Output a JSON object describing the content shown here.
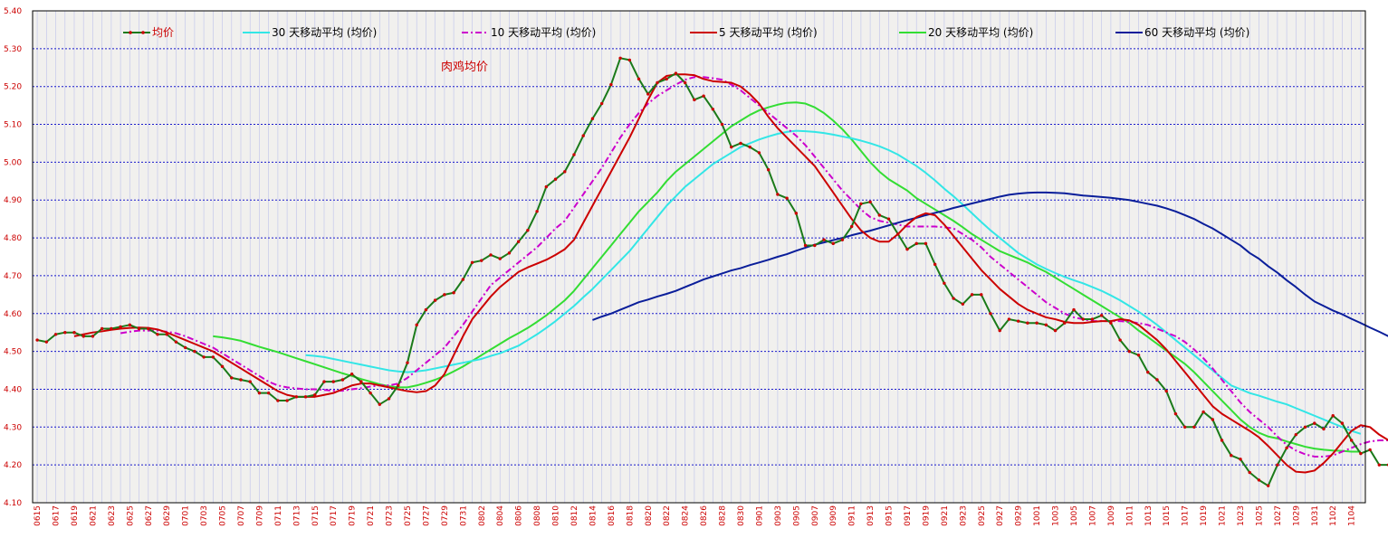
{
  "chart_data": {
    "type": "line",
    "annotation": "肉鸡均价",
    "ylim": [
      4.1,
      5.4
    ],
    "y_ticks": [
      "5.40",
      "5.30",
      "5.20",
      "5.10",
      "5.00",
      "4.90",
      "4.80",
      "4.70",
      "4.60",
      "4.50",
      "4.40",
      "4.30",
      "4.20",
      "4.10"
    ],
    "grid": true,
    "legend_position": "top",
    "x_tick_labels": [
      "0615",
      "0617",
      "0619",
      "0621",
      "0623",
      "0625",
      "0627",
      "0629",
      "0701",
      "0703",
      "0705",
      "0707",
      "0709",
      "0711",
      "0713",
      "0715",
      "0717",
      "0719",
      "0721",
      "0723",
      "0725",
      "0727",
      "0729",
      "0731",
      "0802",
      "0804",
      "0806",
      "0808",
      "0810",
      "0812",
      "0814",
      "0816",
      "0818",
      "0820",
      "0822",
      "0824",
      "0826",
      "0828",
      "0830",
      "0901",
      "0903",
      "0905",
      "0907",
      "0909",
      "0911",
      "0913",
      "0915",
      "0917",
      "0919",
      "0921",
      "0923",
      "0925",
      "0927",
      "0929",
      "1001",
      "1003",
      "1005",
      "1007",
      "1009",
      "1011",
      "1013",
      "1015",
      "1017",
      "1019",
      "1021",
      "1023",
      "1025",
      "1027",
      "1029",
      "1031",
      "1102",
      "1104"
    ],
    "series": [
      {
        "name": "均价",
        "color": "#1a7a1a",
        "style": "solid-markers",
        "x_from": "0615",
        "values": [
          4.53,
          4.525,
          4.545,
          4.55,
          4.55,
          4.54,
          4.54,
          4.56,
          4.56,
          4.565,
          4.57,
          4.56,
          4.56,
          4.545,
          4.545,
          4.525,
          4.51,
          4.5,
          4.485,
          4.485,
          4.46,
          4.43,
          4.425,
          4.42,
          4.39,
          4.39,
          4.37,
          4.37,
          4.38,
          4.38,
          4.385,
          4.42,
          4.42,
          4.425,
          4.44,
          4.42,
          4.39,
          4.36,
          4.375,
          4.41,
          4.47,
          4.57,
          4.61,
          4.635,
          4.65,
          4.655,
          4.69,
          4.735,
          4.74,
          4.755,
          4.745,
          4.76,
          4.79,
          4.82,
          4.87,
          4.935,
          4.955,
          4.975,
          5.02,
          5.07,
          5.115,
          5.155,
          5.205,
          5.275,
          5.27,
          5.22,
          5.18,
          5.21,
          5.22,
          5.235,
          5.21,
          5.165,
          5.175,
          5.14,
          5.1,
          5.04,
          5.05,
          5.04,
          5.025,
          4.98,
          4.915,
          4.905,
          4.865,
          4.78,
          4.78,
          4.795,
          4.785,
          4.795,
          4.83,
          4.89,
          4.895,
          4.86,
          4.85,
          4.81,
          4.77,
          4.785,
          4.785,
          4.73,
          4.68,
          4.64,
          4.625,
          4.65,
          4.65,
          4.6,
          4.555,
          4.585,
          4.58,
          4.575,
          4.575,
          4.57,
          4.555,
          4.575,
          4.61,
          4.585,
          4.585,
          4.595,
          4.575,
          4.53,
          4.5,
          4.49,
          4.445,
          4.425,
          4.395,
          4.335,
          4.3,
          4.3,
          4.34,
          4.32,
          4.265,
          4.225,
          4.215,
          4.18,
          4.16,
          4.145,
          4.2,
          4.245,
          4.28,
          4.3,
          4.31,
          4.295,
          4.33,
          4.31,
          4.265,
          4.23,
          4.24,
          4.2,
          4.2,
          4.195
        ]
      },
      {
        "name": "30  天移动平均  (均价)",
        "color": "#33e6e6",
        "style": "solid",
        "x_from": "0714",
        "values": [
          4.49,
          4.488,
          4.485,
          4.48,
          4.475,
          4.47,
          4.465,
          4.46,
          4.455,
          4.45,
          4.447,
          4.445,
          4.447,
          4.45,
          4.455,
          4.46,
          4.465,
          4.47,
          4.475,
          4.48,
          4.488,
          4.495,
          4.505,
          4.515,
          4.53,
          4.545,
          4.562,
          4.58,
          4.6,
          4.62,
          4.643,
          4.665,
          4.69,
          4.715,
          4.74,
          4.765,
          4.795,
          4.825,
          4.855,
          4.885,
          4.91,
          4.935,
          4.955,
          4.975,
          4.995,
          5.01,
          5.025,
          5.04,
          5.05,
          5.06,
          5.068,
          5.075,
          5.08,
          5.083,
          5.082,
          5.08,
          5.077,
          5.073,
          5.068,
          5.063,
          5.057,
          5.05,
          5.042,
          5.032,
          5.02,
          5.005,
          4.99,
          4.972,
          4.952,
          4.93,
          4.91,
          4.888,
          4.865,
          4.842,
          4.82,
          4.8,
          4.78,
          4.76,
          4.745,
          4.73,
          4.718,
          4.707,
          4.697,
          4.688,
          4.68,
          4.67,
          4.66,
          4.648,
          4.635,
          4.62,
          4.605,
          4.588,
          4.57,
          4.55,
          4.53,
          4.51,
          4.49,
          4.47,
          4.45,
          4.43,
          4.41,
          4.4,
          4.39,
          4.383,
          4.375,
          4.367,
          4.36,
          4.35,
          4.34,
          4.33,
          4.32,
          4.31,
          4.3,
          4.29,
          4.282
        ]
      },
      {
        "name": "10  天移动平均  (均价)",
        "color": "#cc00cc",
        "style": "dash-dot",
        "x_from": "0624",
        "values": [
          4.548,
          4.552,
          4.555,
          4.555,
          4.555,
          4.552,
          4.548,
          4.54,
          4.53,
          4.52,
          4.51,
          4.495,
          4.48,
          4.465,
          4.45,
          4.435,
          4.42,
          4.41,
          4.405,
          4.402,
          4.4,
          4.4,
          4.398,
          4.396,
          4.396,
          4.4,
          4.403,
          4.407,
          4.41,
          4.41,
          4.415,
          4.43,
          4.45,
          4.47,
          4.49,
          4.51,
          4.54,
          4.57,
          4.605,
          4.64,
          4.675,
          4.695,
          4.715,
          4.735,
          4.755,
          4.775,
          4.8,
          4.825,
          4.845,
          4.88,
          4.915,
          4.95,
          4.985,
          5.025,
          5.065,
          5.1,
          5.13,
          5.155,
          5.175,
          5.19,
          5.205,
          5.218,
          5.225,
          5.225,
          5.222,
          5.218,
          5.205,
          5.19,
          5.17,
          5.15,
          5.13,
          5.11,
          5.09,
          5.07,
          5.045,
          5.015,
          4.985,
          4.955,
          4.925,
          4.9,
          4.875,
          4.855,
          4.845,
          4.84,
          4.835,
          4.83,
          4.83,
          4.83,
          4.83,
          4.828,
          4.825,
          4.81,
          4.795,
          4.775,
          4.75,
          4.73,
          4.71,
          4.69,
          4.67,
          4.65,
          4.63,
          4.615,
          4.6,
          4.59,
          4.585,
          4.58,
          4.58,
          4.58,
          4.58,
          4.578,
          4.575,
          4.57,
          4.56,
          4.55,
          4.54,
          4.525,
          4.505,
          4.482,
          4.455,
          4.425,
          4.395,
          4.365,
          4.34,
          4.32,
          4.3,
          4.275,
          4.253,
          4.238,
          4.228,
          4.222,
          4.222,
          4.225,
          4.235,
          4.245,
          4.255,
          4.262,
          4.265,
          4.265,
          4.263,
          4.26,
          4.255,
          4.25
        ]
      },
      {
        "name": "5  天移动平均  (均价)",
        "color": "#cc0000",
        "style": "solid",
        "x_from": "0619",
        "values": [
          4.54,
          4.545,
          4.55,
          4.553,
          4.557,
          4.56,
          4.562,
          4.563,
          4.562,
          4.558,
          4.55,
          4.54,
          4.53,
          4.52,
          4.51,
          4.5,
          4.485,
          4.47,
          4.455,
          4.44,
          4.425,
          4.41,
          4.395,
          4.385,
          4.38,
          4.38,
          4.38,
          4.385,
          4.39,
          4.4,
          4.41,
          4.415,
          4.415,
          4.41,
          4.405,
          4.4,
          4.395,
          4.392,
          4.395,
          4.41,
          4.44,
          4.49,
          4.54,
          4.585,
          4.615,
          4.645,
          4.67,
          4.69,
          4.71,
          4.722,
          4.732,
          4.742,
          4.755,
          4.77,
          4.795,
          4.84,
          4.885,
          4.93,
          4.975,
          5.02,
          5.065,
          5.115,
          5.165,
          5.21,
          5.228,
          5.232,
          5.232,
          5.23,
          5.22,
          5.214,
          5.212,
          5.21,
          5.2,
          5.18,
          5.155,
          5.12,
          5.09,
          5.065,
          5.04,
          5.015,
          4.99,
          4.955,
          4.92,
          4.885,
          4.85,
          4.82,
          4.8,
          4.79,
          4.79,
          4.81,
          4.835,
          4.855,
          4.865,
          4.86,
          4.835,
          4.805,
          4.775,
          4.745,
          4.715,
          4.69,
          4.665,
          4.645,
          4.625,
          4.61,
          4.6,
          4.59,
          4.585,
          4.578,
          4.575,
          4.575,
          4.578,
          4.58,
          4.58,
          4.585,
          4.582,
          4.57,
          4.55,
          4.53,
          4.505,
          4.475,
          4.445,
          4.415,
          4.385,
          4.355,
          4.335,
          4.32,
          4.305,
          4.29,
          4.273,
          4.25,
          4.225,
          4.2,
          4.182,
          4.18,
          4.185,
          4.205,
          4.23,
          4.26,
          4.29,
          4.305,
          4.3,
          4.28,
          4.265,
          4.24,
          4.225,
          4.21,
          4.21,
          4.2
        ]
      },
      {
        "name": "20  天移动平均  (均价)",
        "color": "#33dd33",
        "style": "solid",
        "x_from": "0704",
        "values": [
          4.54,
          4.537,
          4.533,
          4.528,
          4.52,
          4.512,
          4.505,
          4.498,
          4.49,
          4.482,
          4.474,
          4.466,
          4.458,
          4.45,
          4.442,
          4.435,
          4.427,
          4.42,
          4.413,
          4.408,
          4.405,
          4.405,
          4.41,
          4.417,
          4.425,
          4.435,
          4.447,
          4.46,
          4.475,
          4.49,
          4.505,
          4.52,
          4.535,
          4.548,
          4.562,
          4.578,
          4.595,
          4.615,
          4.635,
          4.66,
          4.69,
          4.72,
          4.75,
          4.78,
          4.81,
          4.84,
          4.87,
          4.895,
          4.92,
          4.95,
          4.975,
          4.995,
          5.015,
          5.035,
          5.055,
          5.075,
          5.095,
          5.11,
          5.125,
          5.137,
          5.145,
          5.152,
          5.157,
          5.158,
          5.155,
          5.145,
          5.13,
          5.11,
          5.087,
          5.06,
          5.03,
          5.0,
          4.975,
          4.955,
          4.94,
          4.925,
          4.905,
          4.89,
          4.875,
          4.86,
          4.845,
          4.828,
          4.81,
          4.795,
          4.78,
          4.765,
          4.755,
          4.745,
          4.735,
          4.722,
          4.71,
          4.695,
          4.68,
          4.665,
          4.65,
          4.635,
          4.62,
          4.605,
          4.59,
          4.575,
          4.555,
          4.538,
          4.52,
          4.502,
          4.485,
          4.467,
          4.445,
          4.42,
          4.395,
          4.37,
          4.345,
          4.32,
          4.3,
          4.285,
          4.275,
          4.27,
          4.262,
          4.255,
          4.248,
          4.243,
          4.24,
          4.238,
          4.237,
          4.235,
          4.235
        ]
      },
      {
        "name": "60  天移动平均  (均价)",
        "color": "#0a1e9a",
        "style": "solid",
        "x_from": "0814",
        "values": [
          4.583,
          4.592,
          4.6,
          4.61,
          4.62,
          4.63,
          4.637,
          4.645,
          4.652,
          4.66,
          4.67,
          4.68,
          4.69,
          4.698,
          4.706,
          4.714,
          4.72,
          4.728,
          4.735,
          4.742,
          4.75,
          4.757,
          4.766,
          4.774,
          4.782,
          4.788,
          4.794,
          4.8,
          4.807,
          4.813,
          4.819,
          4.826,
          4.833,
          4.84,
          4.847,
          4.853,
          4.86,
          4.866,
          4.872,
          4.879,
          4.885,
          4.891,
          4.897,
          4.903,
          4.909,
          4.914,
          4.917,
          4.919,
          4.92,
          4.92,
          4.919,
          4.918,
          4.915,
          4.912,
          4.91,
          4.908,
          4.906,
          4.903,
          4.9,
          4.895,
          4.89,
          4.885,
          4.878,
          4.87,
          4.86,
          4.85,
          4.837,
          4.825,
          4.81,
          4.795,
          4.78,
          4.76,
          4.745,
          4.725,
          4.708,
          4.688,
          4.67,
          4.65,
          4.632,
          4.62,
          4.608,
          4.598,
          4.586,
          4.575,
          4.563,
          4.552,
          4.54,
          4.528,
          4.516,
          4.504,
          4.496,
          4.492,
          4.49
        ]
      }
    ]
  }
}
